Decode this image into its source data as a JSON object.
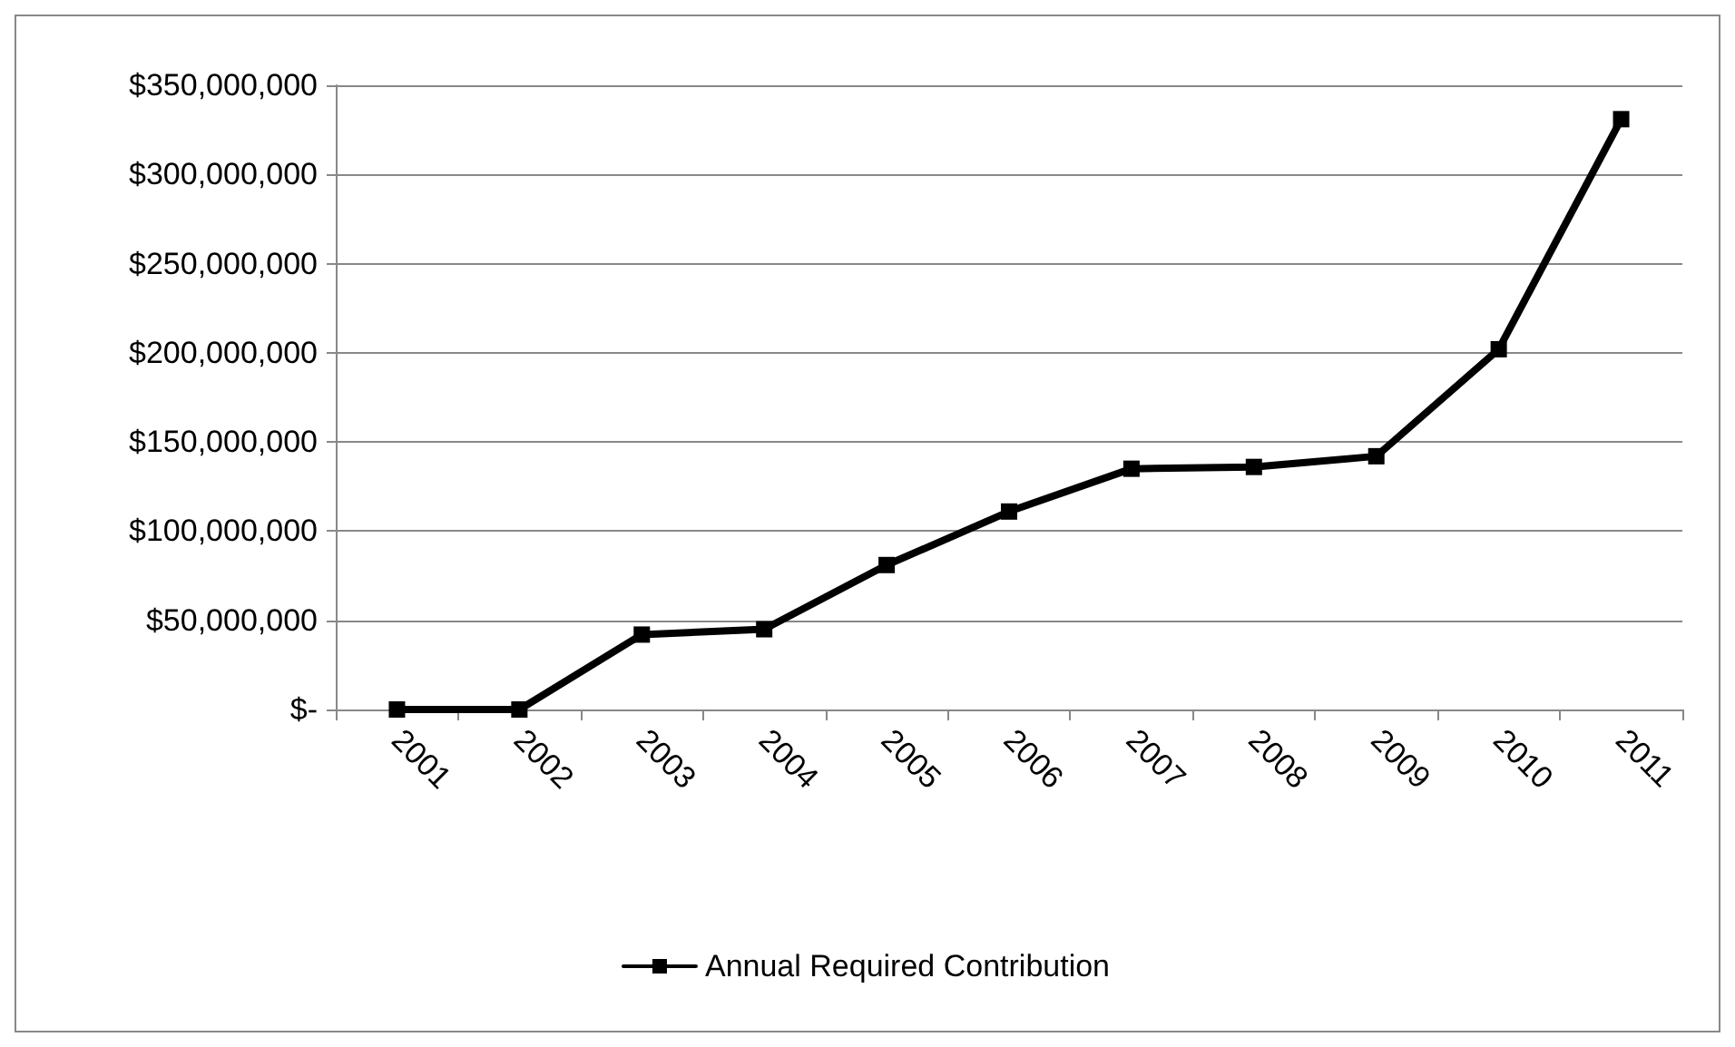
{
  "chart_data": {
    "type": "line",
    "categories": [
      "2001",
      "2002",
      "2003",
      "2004",
      "2005",
      "2006",
      "2007",
      "2008",
      "2009",
      "2010",
      "2011"
    ],
    "series": [
      {
        "name": "Annual Required Contribution",
        "color": "#000000",
        "values": [
          0,
          0,
          42000000,
          45000000,
          81000000,
          111000000,
          135000000,
          136000000,
          142000000,
          202000000,
          331000000
        ]
      }
    ],
    "ylim": [
      0,
      350000000
    ],
    "yticks": [
      {
        "value": 0,
        "label": "$-"
      },
      {
        "value": 50000000,
        "label": "$50,000,000"
      },
      {
        "value": 100000000,
        "label": "$100,000,000"
      },
      {
        "value": 150000000,
        "label": "$150,000,000"
      },
      {
        "value": 200000000,
        "label": "$200,000,000"
      },
      {
        "value": 250000000,
        "label": "$250,000,000"
      },
      {
        "value": 300000000,
        "label": "$300,000,000"
      },
      {
        "value": 350000000,
        "label": "$350,000,000"
      }
    ],
    "grid": "y",
    "legend": "bottom",
    "marker": "square",
    "line_style": "solid"
  }
}
